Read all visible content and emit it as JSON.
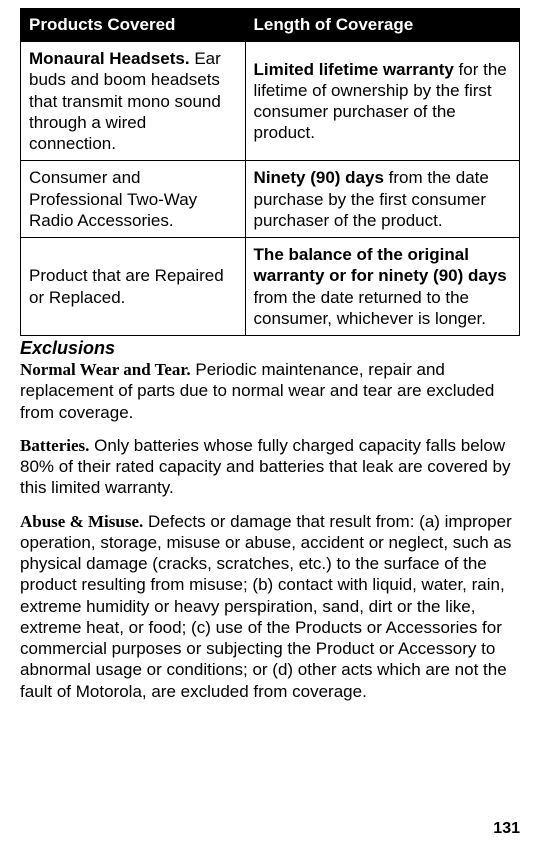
{
  "table": {
    "headers": {
      "products": "Products Covered",
      "length": "Length of Coverage"
    },
    "rows": [
      {
        "product_bold": "Monaural Headsets.",
        "product_rest": " Ear buds and boom headsets that transmit mono sound through a wired connection.",
        "coverage_bold": "Limited lifetime warranty",
        "coverage_rest": " for the lifetime of ownership by the first consumer purchaser of the product."
      },
      {
        "product_bold": "",
        "product_rest": "Consumer and Professional Two-Way Radio Accessories.",
        "coverage_bold": "Ninety (90) days",
        "coverage_rest": " from the date purchase by the first consumer purchaser of the product."
      },
      {
        "product_bold": "",
        "product_rest": "Product that are Repaired or Replaced.",
        "coverage_bold": "The balance of the original warranty or for ninety (90) days",
        "coverage_rest": " from the date returned to the consumer, whichever is longer."
      }
    ]
  },
  "exclusions": {
    "title": "Exclusions",
    "items": [
      {
        "heading": "Normal Wear and Tear.",
        "body": " Periodic maintenance, repair and replacement of parts due to normal wear and tear are excluded from coverage."
      },
      {
        "heading": "Batteries.",
        "body": " Only batteries whose fully charged capacity falls below 80% of their rated capacity and batteries that leak are covered by this limited warranty."
      },
      {
        "heading": "Abuse & Misuse.",
        "body": " Defects or damage that result from: (a) improper operation, storage, misuse or abuse, accident or neglect, such as physical damage (cracks, scratches, etc.) to the surface of the product resulting from misuse; (b) contact with liquid, water, rain, extreme humidity or heavy perspiration, sand, dirt or the like, extreme heat, or food; (c) use of the Products or Accessories for commercial purposes or subjecting the Product or Accessory to abnormal usage or conditions; or (d) other acts which are not the fault of Motorola, are excluded from coverage."
      }
    ]
  },
  "page_number": "131"
}
